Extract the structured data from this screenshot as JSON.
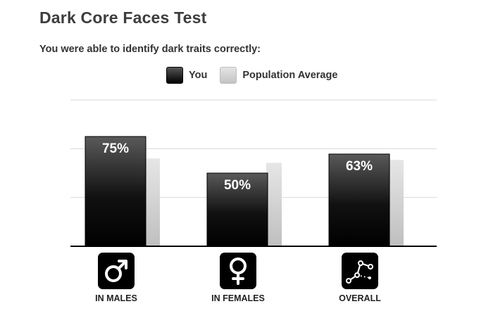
{
  "title": "Dark Core Faces Test",
  "subtitle": "You were able to identify dark traits correctly:",
  "legend": {
    "you_label": "You",
    "population_label": "Population Average"
  },
  "colors": {
    "you_top": "#5a5a5a",
    "you_bottom": "#000000",
    "population_top": "#e6e6e6",
    "population_bottom": "#bfbfbf",
    "gridline": "#d9d9d9",
    "axis": "#000000"
  },
  "chart_data": {
    "type": "bar",
    "categories": [
      "IN MALES",
      "IN FEMALES",
      "OVERALL"
    ],
    "category_icons": [
      "male-symbol-icon",
      "female-symbol-icon",
      "scatter-graph-icon"
    ],
    "series": [
      {
        "name": "You",
        "values": [
          75,
          50,
          63
        ],
        "data_labels": [
          "75%",
          "50%",
          "63%"
        ]
      },
      {
        "name": "Population Average",
        "values": [
          60,
          57,
          59
        ]
      }
    ],
    "ylim": [
      0,
      100
    ],
    "gridlines": [
      33.33,
      66.67,
      100
    ],
    "grid": true,
    "legend_position": "top-center",
    "xlabel": "",
    "ylabel": ""
  }
}
